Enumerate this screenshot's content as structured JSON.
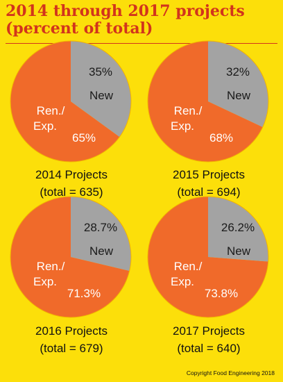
{
  "title_line1": "2014 through 2017 projects",
  "title_line2": "(percent of total)",
  "copyright": "Copyright Food Engineering 2018",
  "colors": {
    "background": "#fcdf0a",
    "title": "#d2341c",
    "ren_exp": "#f06a2a",
    "new": "#a3a3a3"
  },
  "chart_data": [
    {
      "type": "pie",
      "title": "2014 Projects",
      "subtitle": "(total = 635)",
      "slices": [
        {
          "label": "New",
          "value": 35,
          "value_label": "35%"
        },
        {
          "label": "Ren./\nExp.",
          "value": 65,
          "value_label": "65%"
        }
      ]
    },
    {
      "type": "pie",
      "title": "2015 Projects",
      "subtitle": "(total = 694)",
      "slices": [
        {
          "label": "New",
          "value": 32,
          "value_label": "32%"
        },
        {
          "label": "Ren./\nExp.",
          "value": 68,
          "value_label": "68%"
        }
      ]
    },
    {
      "type": "pie",
      "title": "2016 Projects",
      "subtitle": "(total = 679)",
      "slices": [
        {
          "label": "New",
          "value": 28.7,
          "value_label": "28.7%"
        },
        {
          "label": "Ren./\nExp.",
          "value": 71.3,
          "value_label": "71.3%"
        }
      ]
    },
    {
      "type": "pie",
      "title": "2017 Projects",
      "subtitle": "(total = 640)",
      "slices": [
        {
          "label": "New",
          "value": 26.2,
          "value_label": "26.2%"
        },
        {
          "label": "Ren./\nExp.",
          "value": 73.8,
          "value_label": "73.8%"
        }
      ]
    }
  ]
}
